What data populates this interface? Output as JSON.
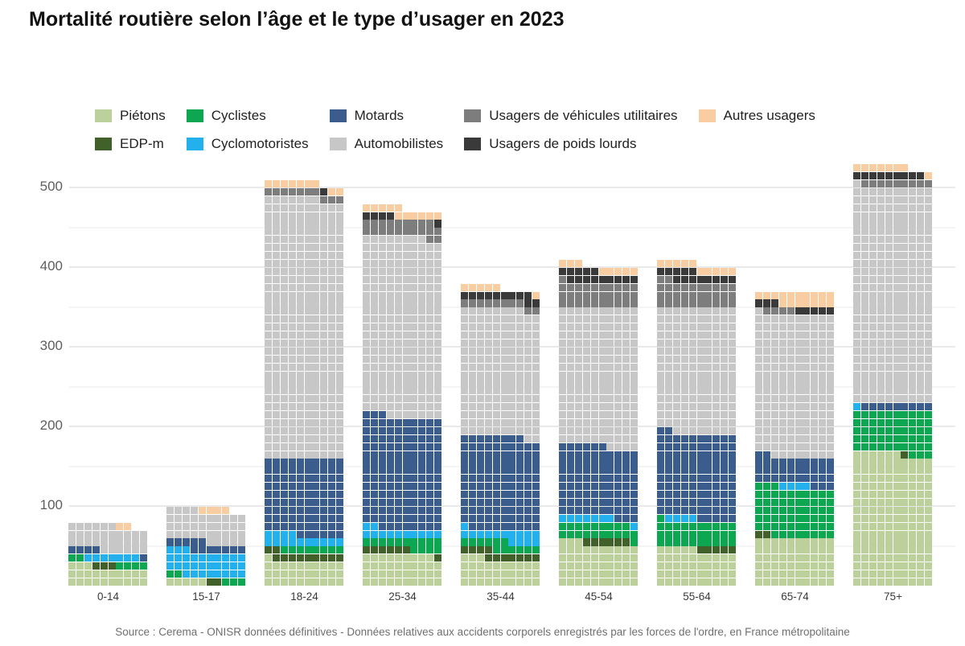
{
  "header": {
    "title": "Mortalité routière selon l’âge et le type d’usager en 2023"
  },
  "footer": {
    "source": "Source : Cerema - ONISR données définitives - Données relatives aux accidents corporels enregistrés par les forces de l'ordre, en France métropolitaine"
  },
  "chart_data": {
    "type": "bar",
    "variant": "waffle-stacked-column",
    "title": "Mortalité routière selon l’âge et le type d’usager en 2023",
    "xlabel": "",
    "ylabel": "",
    "categories": [
      "0-14",
      "15-17",
      "18-24",
      "25-34",
      "35-44",
      "45-54",
      "55-64",
      "65-74",
      "75+"
    ],
    "series": [
      {
        "name": "Piétons",
        "color": "#bcd09c",
        "values": [
          23,
          5,
          31,
          39,
          33,
          53,
          45,
          60,
          166
        ]
      },
      {
        "name": "EDP-m",
        "color": "#41602a",
        "values": [
          3,
          2,
          11,
          7,
          11,
          6,
          5,
          2,
          1
        ]
      },
      {
        "name": "Cyclistes",
        "color": "#0ca750",
        "values": [
          6,
          5,
          8,
          14,
          12,
          20,
          31,
          61,
          53
        ]
      },
      {
        "name": "Cyclomotoristes",
        "color": "#22b1ec",
        "values": [
          7,
          31,
          14,
          12,
          15,
          8,
          4,
          4,
          1
        ]
      },
      {
        "name": "Motards",
        "color": "#3a5d8e",
        "values": [
          5,
          12,
          96,
          141,
          117,
          89,
          107,
          35,
          9
        ]
      },
      {
        "name": "Automobilistes",
        "color": "#c7c7c7",
        "values": [
          32,
          39,
          327,
          225,
          160,
          174,
          158,
          179,
          271
        ]
      },
      {
        "name": "Usagers de véhicules utilitaires",
        "color": "#7d7d7d",
        "values": [
          0,
          0,
          10,
          21,
          10,
          31,
          32,
          4,
          9
        ]
      },
      {
        "name": "Usagers de poids lourds",
        "color": "#3a3a3a",
        "values": [
          0,
          0,
          1,
          5,
          11,
          14,
          13,
          8,
          9
        ]
      },
      {
        "name": "Autres usagers",
        "color": "#f8cda1",
        "values": [
          2,
          4,
          9,
          11,
          6,
          8,
          10,
          17,
          8
        ]
      }
    ],
    "totals": [
      78,
      98,
      507,
      475,
      375,
      403,
      405,
      370,
      527
    ],
    "y_axis": {
      "major_ticks": [
        100,
        200,
        300,
        400,
        500
      ],
      "minor_ticks": [
        50,
        150,
        250,
        350,
        450
      ],
      "range": [
        0,
        540
      ],
      "grid": true
    },
    "legend": {
      "rows": 2,
      "flow": "column",
      "position": "top"
    }
  }
}
